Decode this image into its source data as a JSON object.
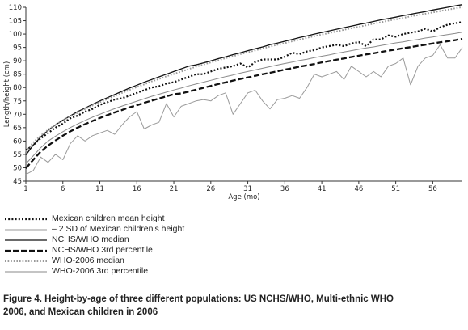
{
  "chart_data": {
    "type": "line",
    "xlabel": "Age (mo)",
    "ylabel": "Length/height (cm)",
    "xlim": [
      1,
      60
    ],
    "ylim": [
      45,
      110
    ],
    "xticks": [
      1,
      6,
      11,
      16,
      21,
      26,
      31,
      36,
      41,
      46,
      51,
      56
    ],
    "yticks": [
      45,
      50,
      55,
      60,
      65,
      70,
      75,
      80,
      85,
      90,
      95,
      100,
      105,
      110
    ],
    "x": [
      1,
      2,
      3,
      4,
      5,
      6,
      7,
      8,
      9,
      10,
      11,
      12,
      13,
      14,
      15,
      16,
      17,
      18,
      19,
      20,
      21,
      22,
      23,
      24,
      25,
      26,
      27,
      28,
      29,
      30,
      31,
      32,
      33,
      34,
      35,
      36,
      37,
      38,
      39,
      40,
      41,
      42,
      43,
      44,
      45,
      46,
      47,
      48,
      49,
      50,
      51,
      52,
      53,
      54,
      55,
      56,
      57,
      58,
      59,
      60
    ],
    "series": [
      {
        "name": "Mexican children mean height",
        "style": "dotted",
        "color": "#111111",
        "values": [
          56.5,
          58.5,
          61,
          63,
          65,
          66.5,
          68.5,
          69.5,
          71,
          72,
          73.5,
          74.5,
          75.5,
          76,
          77,
          78,
          79,
          80,
          80.5,
          81.5,
          82,
          83,
          84,
          85,
          85,
          86,
          87,
          87.5,
          88,
          89,
          87.5,
          89.5,
          90.5,
          90.5,
          90.5,
          91.5,
          93,
          92.5,
          93.5,
          94,
          95,
          95.5,
          96,
          95.5,
          96.5,
          97,
          95.5,
          98,
          98,
          99.5,
          99,
          100,
          100.5,
          101,
          102,
          101,
          102.5,
          103.5,
          104,
          104.5
        ]
      },
      {
        "name": "– 2 SD of Mexican children's height",
        "style": "solid-thin",
        "color": "#9a9a9a",
        "values": [
          47.5,
          49,
          54,
          52,
          55,
          53,
          59,
          62,
          60,
          62,
          63,
          64,
          62.5,
          66,
          69,
          71,
          64.5,
          66,
          67,
          74,
          69,
          73,
          74,
          75,
          75.5,
          75,
          77,
          78,
          70,
          74,
          78,
          79,
          75,
          72,
          75.5,
          76,
          77,
          76,
          80,
          85,
          84,
          85,
          86,
          83,
          88,
          86,
          84,
          86,
          84,
          88,
          89,
          91,
          81,
          88,
          91,
          92,
          96,
          91,
          91,
          95
        ]
      },
      {
        "name": "NCHS/WHO median",
        "style": "solid",
        "color": "#111111",
        "values": [
          54.8,
          58.5,
          61.5,
          64,
          66,
          67.8,
          69.4,
          71,
          72.3,
          73.7,
          75,
          76.2,
          77.4,
          78.6,
          79.8,
          80.9,
          82,
          83,
          84,
          85,
          86,
          87,
          88,
          88.5,
          89.2,
          90,
          90.8,
          91.5,
          92.3,
          93,
          93.8,
          94.5,
          95.2,
          96,
          96.6,
          97.3,
          98,
          98.7,
          99.3,
          100,
          100.6,
          101.2,
          101.8,
          102.4,
          103,
          103.6,
          104.1,
          104.7,
          105.3,
          105.8,
          106.3,
          106.9,
          107.4,
          107.9,
          108.4,
          109,
          109.5,
          110,
          110.5,
          111
        ]
      },
      {
        "name": "NCHS/WHO 3rd percentile",
        "style": "dashed",
        "color": "#111111",
        "values": [
          49.8,
          53,
          56,
          58.3,
          60.2,
          62,
          63.6,
          65,
          66.3,
          67.5,
          68.6,
          69.7,
          70.7,
          71.6,
          72.6,
          73.4,
          74.3,
          75.1,
          75.9,
          76.7,
          77.5,
          77.8,
          78.5,
          79.2,
          79.9,
          80.6,
          81.3,
          81.9,
          82.6,
          83.2,
          83.8,
          84.4,
          85,
          85.5,
          86.1,
          86.7,
          87.2,
          87.8,
          88.3,
          88.8,
          89.4,
          89.9,
          90.4,
          90.9,
          91.4,
          91.9,
          92.4,
          92.8,
          93.3,
          93.8,
          94.2,
          94.7,
          95.1,
          95.6,
          96,
          96.5,
          96.9,
          97.3,
          97.7,
          98.2
        ]
      },
      {
        "name": "WHO-2006 median",
        "style": "dotted-gray",
        "color": "#9a9a9a",
        "values": [
          56,
          59.5,
          62,
          64.2,
          66.1,
          67.7,
          69.2,
          70.6,
          72,
          73.3,
          74.5,
          75.7,
          76.9,
          78,
          79.1,
          80.2,
          81.2,
          82.3,
          83.2,
          84.2,
          85.1,
          86,
          86.9,
          87.8,
          88.6,
          89.4,
          90.2,
          91,
          91.7,
          92.5,
          93.2,
          93.9,
          94.6,
          95.3,
          96,
          96.6,
          97.3,
          97.9,
          98.6,
          99.2,
          99.8,
          100.4,
          101,
          101.6,
          102.2,
          102.7,
          103.3,
          103.9,
          104.4,
          105,
          105.5,
          106,
          106.6,
          107.1,
          107.6,
          108.1,
          108.6,
          109.1,
          109.6,
          110.1
        ]
      },
      {
        "name": "WHO-2006 3rd percentile",
        "style": "solid-gray",
        "color": "#8a8a8a",
        "values": [
          51.5,
          54.5,
          57.5,
          60,
          61.8,
          63.5,
          65,
          66.4,
          67.7,
          68.9,
          70,
          71.1,
          72.1,
          73.1,
          74,
          74.9,
          75.8,
          76.7,
          77.5,
          78.3,
          79.1,
          79.8,
          80.6,
          81.3,
          82,
          82.7,
          83.4,
          84.1,
          84.7,
          85.4,
          86,
          86.6,
          87.2,
          87.8,
          88.4,
          89,
          89.5,
          90.1,
          90.6,
          91.2,
          91.7,
          92.2,
          92.8,
          93.3,
          93.8,
          94.3,
          94.8,
          95.2,
          95.7,
          96.2,
          96.7,
          97.1,
          97.6,
          98,
          98.5,
          98.9,
          99.4,
          99.8,
          100.2,
          100.7
        ]
      }
    ]
  },
  "caption": {
    "line1": "Figure 4. Height-by-age of three different populations: US NCHS/WHO, Multi-ethnic WHO",
    "line2": "2006, and Mexican children in 2006"
  }
}
